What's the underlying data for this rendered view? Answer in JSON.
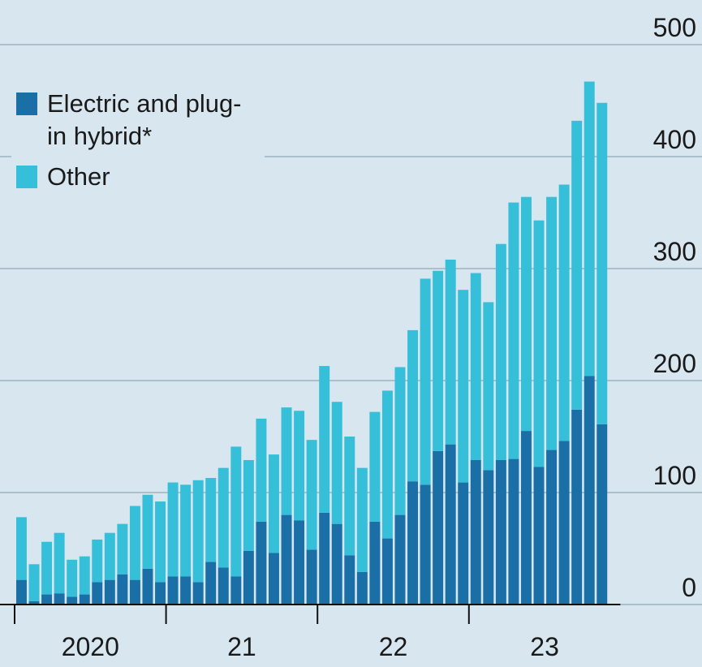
{
  "chart_data": {
    "type": "stacked_bar",
    "categories": [
      "2020",
      null,
      null,
      null,
      null,
      null,
      null,
      null,
      null,
      null,
      null,
      null,
      "21",
      null,
      null,
      null,
      null,
      null,
      null,
      null,
      null,
      null,
      null,
      null,
      "22",
      null,
      null,
      null,
      null,
      null,
      null,
      null,
      null,
      null,
      null,
      null,
      "23",
      null,
      null,
      null,
      null,
      null,
      null,
      null,
      null,
      null,
      null
    ],
    "series": [
      {
        "name": "Electric and plug-in hybrid*",
        "color": "#1a6fa6",
        "values": [
          22,
          3,
          9,
          10,
          7,
          9,
          20,
          22,
          27,
          22,
          32,
          20,
          25,
          25,
          20,
          38,
          33,
          25,
          48,
          74,
          46,
          80,
          75,
          49,
          82,
          72,
          44,
          29,
          74,
          59,
          80,
          110,
          107,
          137,
          143,
          109,
          129,
          120,
          129,
          130,
          155,
          123,
          138,
          146,
          174,
          204,
          161
        ]
      },
      {
        "name": "Other",
        "color": "#36bfd8",
        "values": [
          56,
          33,
          47,
          54,
          33,
          34,
          38,
          42,
          45,
          66,
          66,
          72,
          84,
          82,
          91,
          75,
          89,
          116,
          81,
          92,
          88,
          96,
          98,
          98,
          131,
          109,
          106,
          93,
          98,
          132,
          132,
          135,
          184,
          161,
          165,
          172,
          167,
          150,
          193,
          229,
          209,
          220,
          226,
          229,
          258,
          263,
          287
        ]
      }
    ],
    "ylim": [
      0,
      500
    ],
    "yticks": [
      0,
      100,
      200,
      300,
      400,
      500
    ],
    "grid": true
  }
}
